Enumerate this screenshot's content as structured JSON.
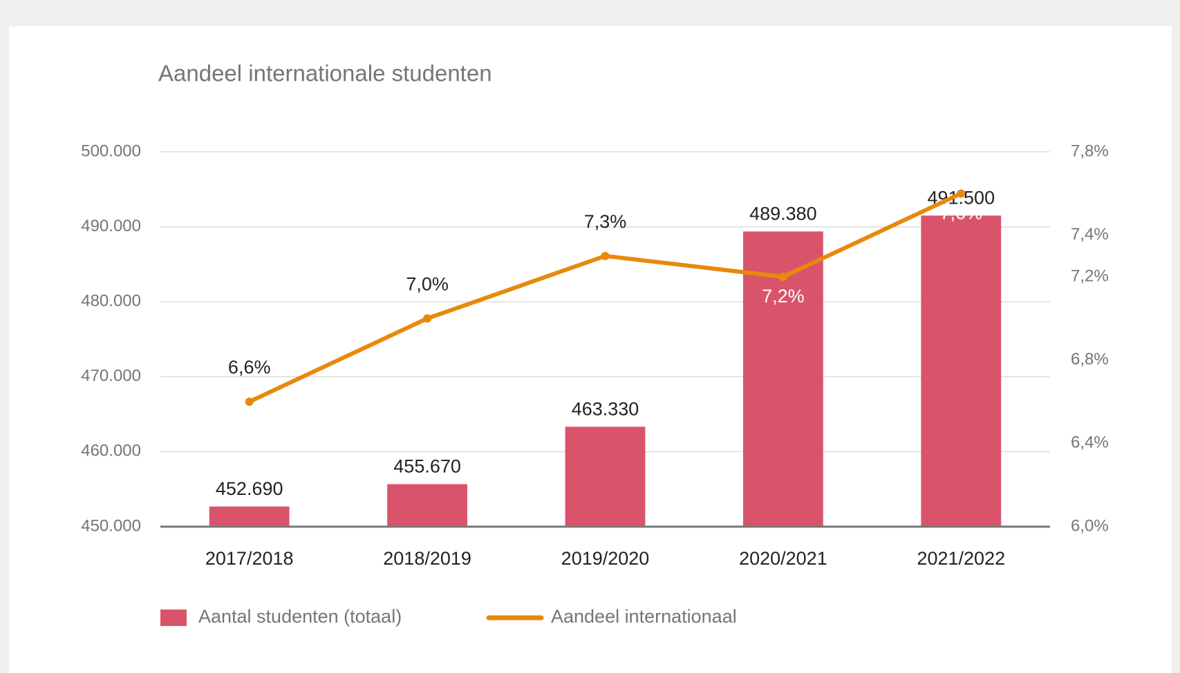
{
  "chart_data": {
    "type": "bar",
    "title": "Aandeel internationale studenten",
    "categories": [
      "2017/2018",
      "2018/2019",
      "2019/2020",
      "2020/2021",
      "2021/2022"
    ],
    "series": [
      {
        "name": "Aantal studenten (totaal)",
        "type": "bar",
        "color": "#d9546b",
        "values": [
          452690,
          455670,
          463330,
          489380,
          491500
        ],
        "value_labels": [
          "452.690",
          "455.670",
          "463.330",
          "489.380",
          "491.500"
        ]
      },
      {
        "name": "Aandeel internationaal",
        "type": "line",
        "axis": "y2",
        "color": "#e8890c",
        "values": [
          6.6,
          7.0,
          7.3,
          7.2,
          7.6
        ],
        "value_labels": [
          "6,6%",
          "7,0%",
          "7,3%",
          "7,2%",
          "7,6%"
        ]
      }
    ],
    "ylim": [
      450000,
      500000
    ],
    "yticks": [
      {
        "value": 450000,
        "label": "450.000"
      },
      {
        "value": 460000,
        "label": "460.000"
      },
      {
        "value": 470000,
        "label": "470.000"
      },
      {
        "value": 480000,
        "label": "480.000"
      },
      {
        "value": 490000,
        "label": "490.000"
      },
      {
        "value": 500000,
        "label": "500.000"
      }
    ],
    "y2lim": [
      6.0,
      7.8
    ],
    "y2ticks": [
      {
        "value": 6.0,
        "label": "6,0%"
      },
      {
        "value": 6.4,
        "label": "6,4%"
      },
      {
        "value": 6.8,
        "label": "6,8%"
      },
      {
        "value": 7.2,
        "label": "7,2%"
      },
      {
        "value": 7.4,
        "label": "7,4%"
      },
      {
        "value": 7.8,
        "label": "7,8%"
      }
    ],
    "grid": true,
    "legend": "bottom"
  }
}
